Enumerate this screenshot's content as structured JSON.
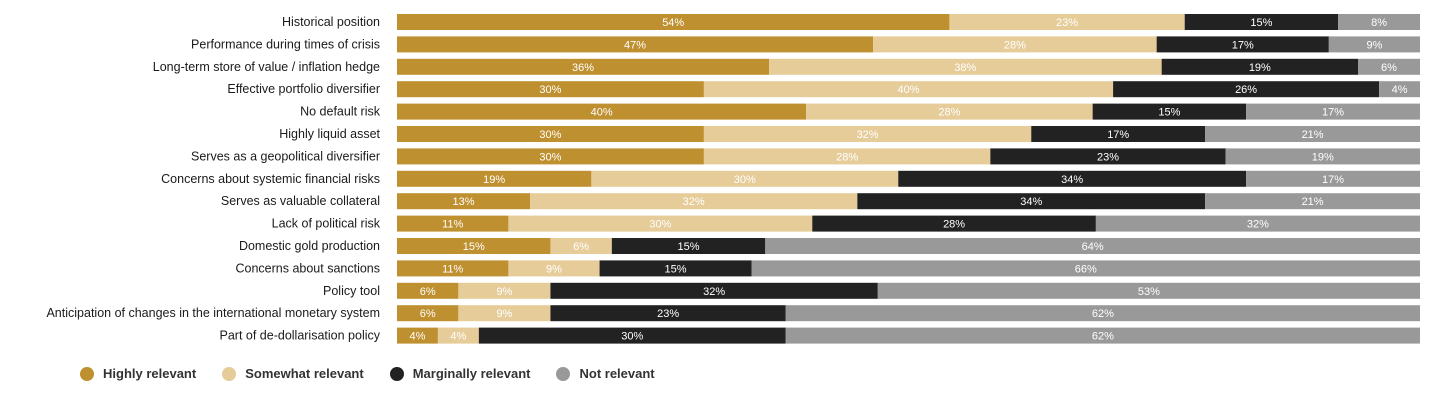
{
  "chart_data": {
    "type": "bar",
    "orientation": "horizontal",
    "stacked": true,
    "value_unit": "%",
    "categories": [
      "Historical position",
      "Performance during times of crisis",
      "Long-term store of value / inflation hedge",
      "Effective portfolio diversifier",
      "No default risk",
      "Highly liquid asset",
      "Serves as a geopolitical diversifier",
      "Concerns about systemic financial risks",
      "Serves as valuable collateral",
      "Lack of political risk",
      "Domestic gold production",
      "Concerns about sanctions",
      "Policy tool",
      "Anticipation of changes in the international monetary system",
      "Part of de-dollarisation policy"
    ],
    "series": [
      {
        "name": "Highly relevant",
        "color": "#bf9030",
        "label_color": "#ffffff",
        "values": [
          54,
          47,
          36,
          30,
          40,
          30,
          30,
          19,
          13,
          11,
          15,
          11,
          6,
          6,
          4
        ]
      },
      {
        "name": "Somewhat relevant",
        "color": "#e6cc99",
        "label_color": "#ffffff",
        "values": [
          23,
          28,
          38,
          40,
          28,
          32,
          28,
          30,
          32,
          30,
          6,
          9,
          9,
          9,
          4
        ]
      },
      {
        "name": "Marginally relevant",
        "color": "#222222",
        "label_color": "#ffffff",
        "values": [
          15,
          17,
          19,
          26,
          15,
          17,
          23,
          34,
          34,
          28,
          15,
          15,
          32,
          23,
          30
        ]
      },
      {
        "name": "Not relevant",
        "color": "#999999",
        "label_color": "#ffffff",
        "values": [
          8,
          9,
          6,
          4,
          17,
          21,
          19,
          17,
          21,
          32,
          64,
          66,
          53,
          62,
          62
        ]
      }
    ],
    "legend_position": "bottom-left",
    "grid": false
  }
}
